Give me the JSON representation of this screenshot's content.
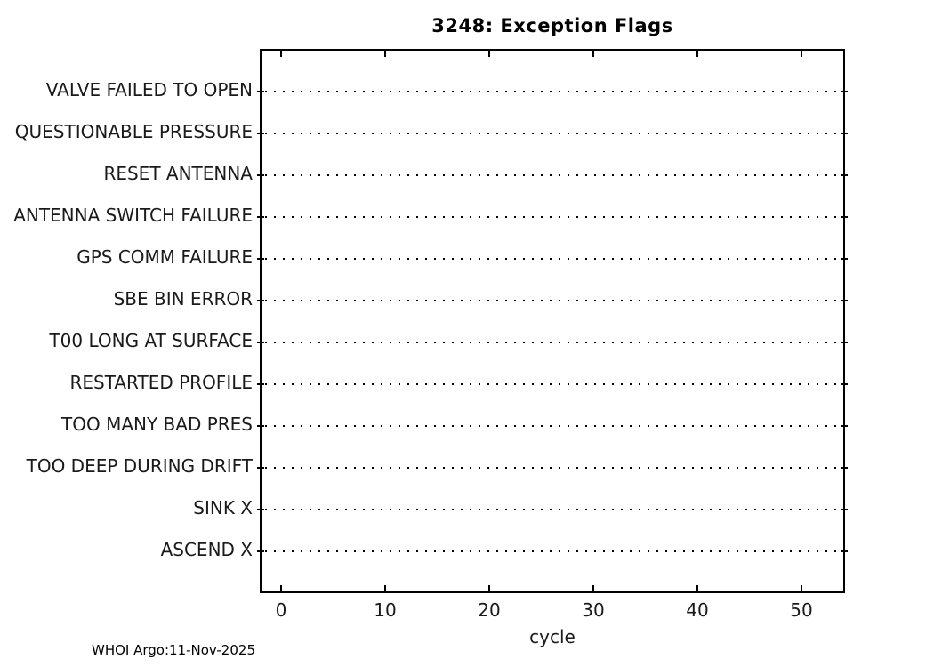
{
  "title": "3248: Exception Flags",
  "footer": "WHOI Argo:11-Nov-2025",
  "chart_data": {
    "type": "scatter",
    "title": "3248: Exception Flags",
    "xlabel": "cycle",
    "ylabel": "",
    "categories": [
      "VALVE FAILED TO OPEN",
      "QUESTIONABLE PRESSURE",
      "RESET ANTENNA",
      "ANTENNA SWITCH FAILURE",
      "GPS COMM FAILURE",
      "SBE BIN ERROR",
      "T00 LONG AT SURFACE",
      "RESTARTED PROFILE",
      "TOO MANY BAD PRES",
      "TOO DEEP DURING DRIFT",
      "SINK X",
      "ASCEND X"
    ],
    "x_ticks": [
      0,
      10,
      20,
      30,
      40,
      50
    ],
    "xlim": [
      -2,
      54
    ],
    "series": [],
    "grid": {
      "style": "dotted",
      "direction": "horizontal",
      "color": "#000000"
    },
    "legend_position": "none",
    "axis_color": "#000000",
    "text_color": "#1a1a1a",
    "background_color": "#ffffff"
  }
}
